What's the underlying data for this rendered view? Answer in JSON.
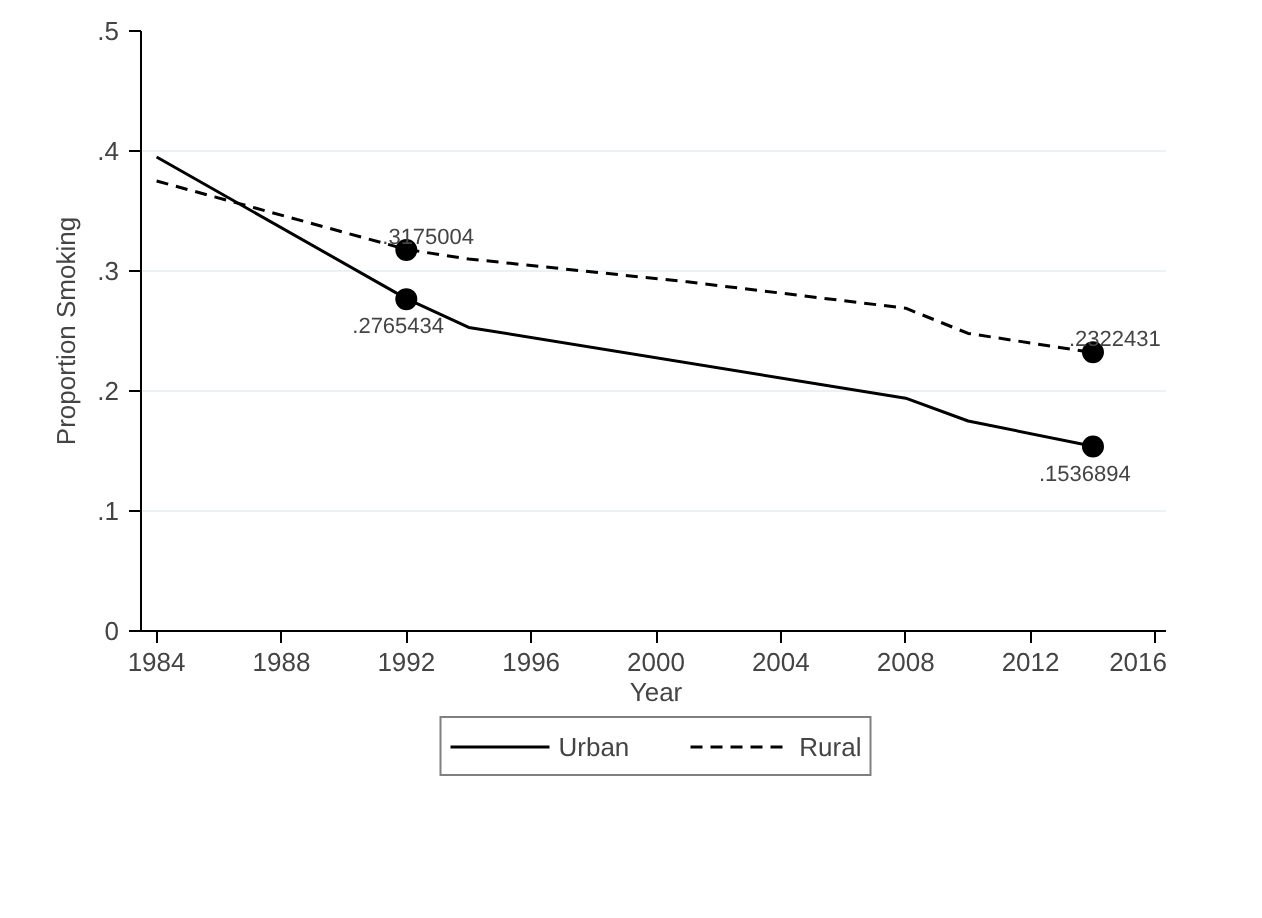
{
  "chart_data": {
    "type": "line",
    "xlabel": "Year",
    "ylabel": "Proportion Smoking",
    "xlim": [
      1983.5,
      2016.5
    ],
    "ylim": [
      0,
      0.5
    ],
    "xticks": [
      1984,
      1988,
      1992,
      1996,
      2000,
      2004,
      2008,
      2012,
      2016
    ],
    "yticks": [
      {
        "value": 0,
        "label": "0"
      },
      {
        "value": 0.1,
        "label": ".1"
      },
      {
        "value": 0.2,
        "label": ".2"
      },
      {
        "value": 0.3,
        "label": ".3"
      },
      {
        "value": 0.4,
        "label": ".4"
      },
      {
        "value": 0.5,
        "label": ".5"
      }
    ],
    "grid": "y",
    "legend": "bottom",
    "marker": "none",
    "series": [
      {
        "name": "Urban",
        "color": "#000000",
        "line_style": "solid",
        "x": [
          1984,
          1992,
          1994,
          2008,
          2010,
          2014
        ],
        "values": [
          0.395,
          0.277,
          0.253,
          0.194,
          0.175,
          0.154
        ]
      },
      {
        "name": "Rural",
        "color": "#000000",
        "line_style": "dashed",
        "x": [
          1984,
          1992,
          1994,
          2001,
          2008,
          2010,
          2014
        ],
        "values": [
          0.375,
          0.318,
          0.31,
          0.291,
          0.269,
          0.248,
          0.232
        ]
      },
      {
        "type": "scatter",
        "marker": "circle",
        "color": "#000000",
        "x": [
          1992,
          2014
        ],
        "values": [
          0.2765434,
          0.1536894
        ],
        "value_labels": [
          ".2765434",
          ".1536894"
        ]
      },
      {
        "type": "scatter",
        "marker": "circle",
        "color": "#000000",
        "x": [
          1992,
          2014
        ],
        "values": [
          0.3175004,
          0.2322431
        ],
        "value_labels": [
          ".3175004",
          ".2322431"
        ]
      }
    ]
  }
}
